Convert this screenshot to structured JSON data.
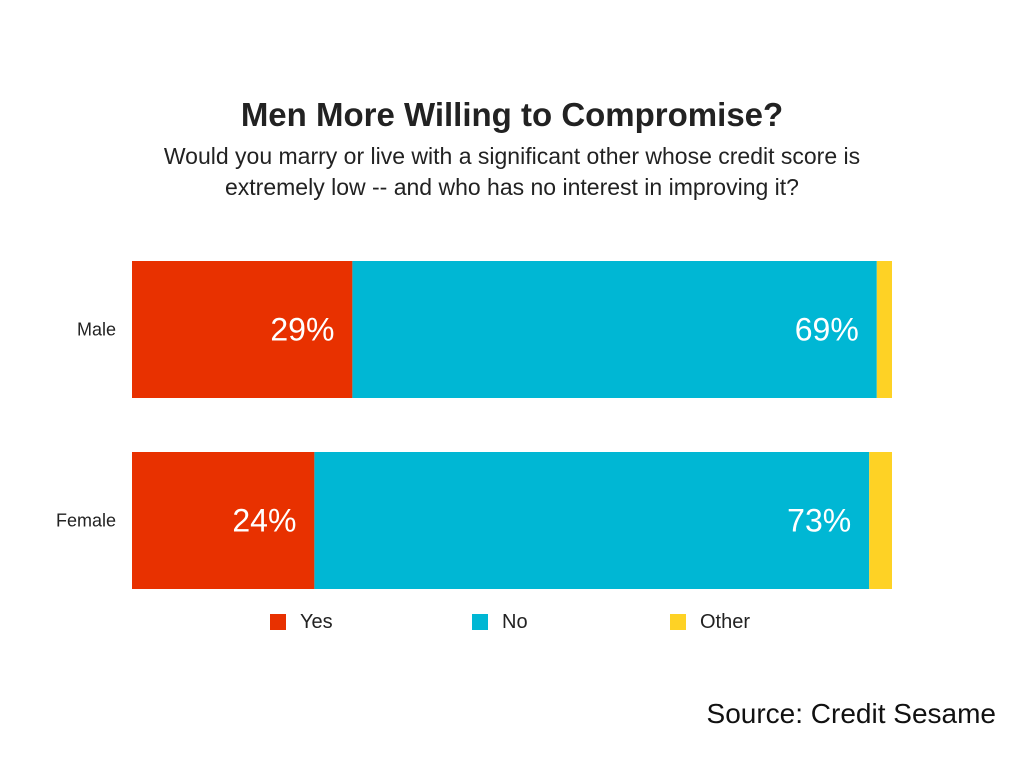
{
  "chart_data": {
    "type": "bar",
    "orientation": "horizontal",
    "stacked": true,
    "title": "Men More Willing to Compromise?",
    "subtitle": "Would you marry or live with a significant other whose credit score is extremely low -- and who has no interest in improving it?",
    "categories": [
      "Male",
      "Female"
    ],
    "series": [
      {
        "name": "Yes",
        "color": "#e83100",
        "values": [
          29,
          24
        ]
      },
      {
        "name": "No",
        "color": "#00b7d4",
        "values": [
          69,
          73
        ]
      },
      {
        "name": "Other",
        "color": "#fed225",
        "values": [
          2,
          3
        ]
      }
    ],
    "data_labels": {
      "Yes": [
        "29%",
        "24%"
      ],
      "No": [
        "69%",
        "73%"
      ]
    },
    "xlim": [
      0,
      100
    ],
    "grid": false,
    "legend": "bottom"
  },
  "source": "Source: Credit Sesame"
}
